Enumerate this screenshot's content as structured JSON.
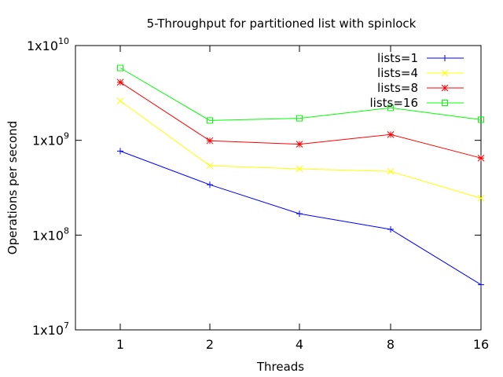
{
  "chart_data": {
    "type": "line",
    "title": "5-Throughput for partitioned list with spinlock",
    "xlabel": "Threads",
    "ylabel": "Operations per second",
    "yscale": "log",
    "ylim": [
      10000000,
      10000000000
    ],
    "categories": [
      "1",
      "2",
      "4",
      "8",
      "16"
    ],
    "x_tick_labels": [
      "1",
      "2",
      "4",
      "8",
      "16"
    ],
    "y_ticks": [
      {
        "base": "1x10",
        "exp": "7"
      },
      {
        "base": "1x10",
        "exp": "8"
      },
      {
        "base": "1x10",
        "exp": "9"
      },
      {
        "base": "1x10",
        "exp": "10"
      }
    ],
    "legend_position": "top-right",
    "grid": false,
    "series": [
      {
        "name": "lists=1",
        "color": "#0000ff",
        "marker": "plus",
        "values": [
          770000000,
          340000000,
          168000000,
          115000000,
          30000000
        ]
      },
      {
        "name": "lists=4",
        "color": "#ffff00",
        "marker": "cross",
        "values": [
          2600000000,
          540000000,
          500000000,
          470000000,
          245000000
        ]
      },
      {
        "name": "lists=8",
        "color": "#ff0000",
        "marker": "star",
        "values": [
          4100000000,
          990000000,
          910000000,
          1150000000,
          650000000
        ]
      },
      {
        "name": "lists=16",
        "color": "#00ff00",
        "marker": "square",
        "values": [
          5800000000,
          1620000000,
          1710000000,
          2200000000,
          1650000000
        ]
      }
    ]
  }
}
